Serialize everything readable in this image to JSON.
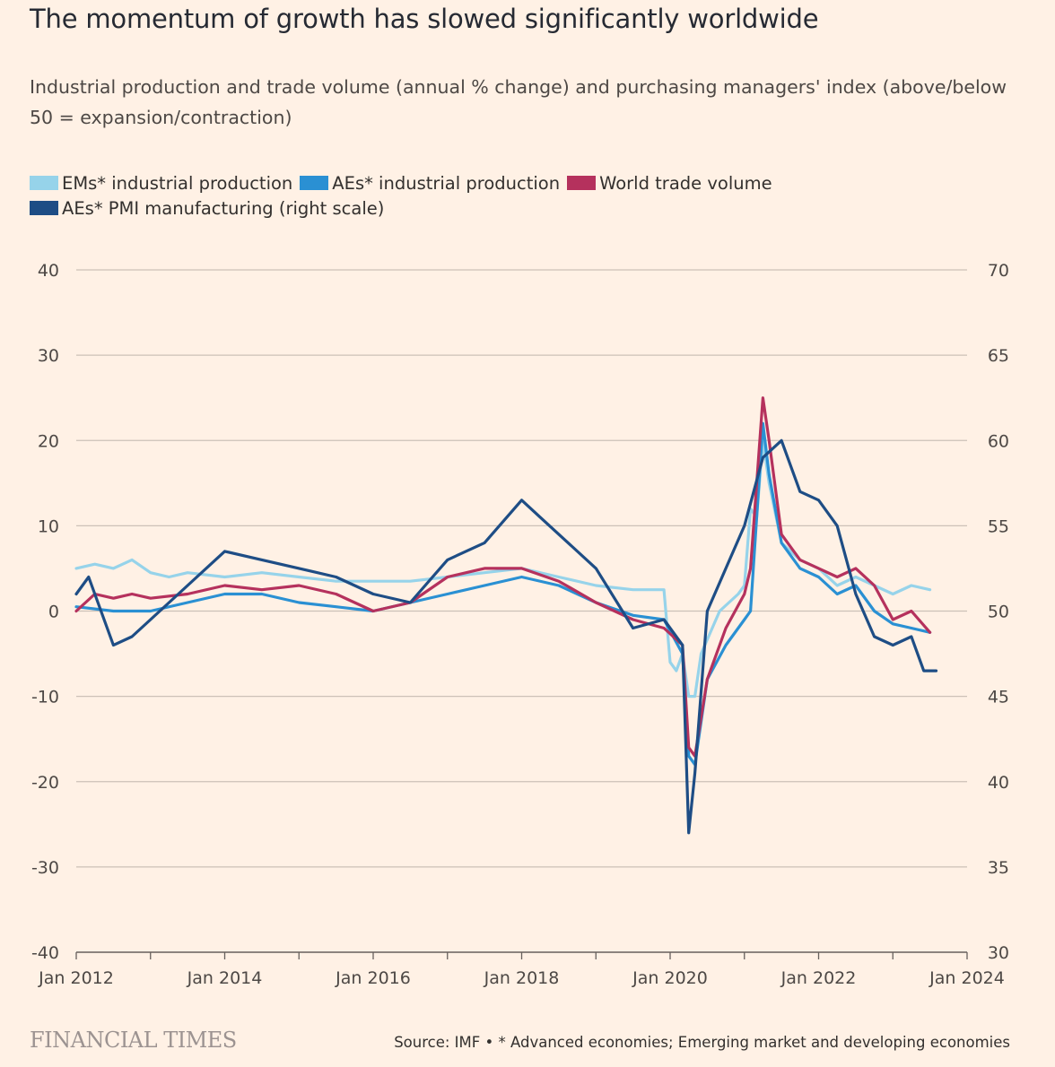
{
  "title": "The momentum of growth has slowed significantly worldwide",
  "subtitle": "Industrial production and trade volume (annual % change) and purchasing managers' index (above/below 50 = expansion/contraction)",
  "legend": [
    {
      "label": "EMs* industrial production",
      "color": "#96d3ea"
    },
    {
      "label": "AEs* industrial production",
      "color": "#2a90d3"
    },
    {
      "label": "World trade volume",
      "color": "#b5315d"
    },
    {
      "label": "AEs* PMI manufacturing (right scale)",
      "color": "#1e4d85"
    }
  ],
  "footer": {
    "logo": "FINANCIAL TIMES",
    "source": "Source: IMF • * Advanced economies; Emerging market and developing economies"
  },
  "chart_data": {
    "type": "line",
    "x_range": [
      "2012-01",
      "2024-01"
    ],
    "x_ticks": [
      "Jan 2012",
      "Jan 2014",
      "Jan 2016",
      "Jan 2018",
      "Jan 2020",
      "Jan 2022",
      "Jan 2024"
    ],
    "y_left": {
      "ylim": [
        -40,
        40
      ],
      "ticks": [
        "40",
        "30",
        "20",
        "10",
        "0",
        "-10",
        "-20",
        "-30",
        "-40"
      ]
    },
    "y_right": {
      "ylim": [
        30,
        70
      ],
      "ticks": [
        "70",
        "65",
        "60",
        "55",
        "50",
        "45",
        "40",
        "35",
        "30"
      ]
    },
    "grid": true,
    "legend_position": "top-left",
    "series": [
      {
        "name": "EMs* industrial production",
        "color": "#96d3ea",
        "axis": "left",
        "points": [
          [
            "2012-01",
            5
          ],
          [
            "2012-04",
            5.5
          ],
          [
            "2012-07",
            5
          ],
          [
            "2012-10",
            6
          ],
          [
            "2013-01",
            4.5
          ],
          [
            "2013-04",
            4
          ],
          [
            "2013-07",
            4.5
          ],
          [
            "2014-01",
            4
          ],
          [
            "2014-07",
            4.5
          ],
          [
            "2015-01",
            4
          ],
          [
            "2015-07",
            3.5
          ],
          [
            "2016-01",
            3.5
          ],
          [
            "2016-07",
            3.5
          ],
          [
            "2017-01",
            4
          ],
          [
            "2017-07",
            4.5
          ],
          [
            "2018-01",
            5
          ],
          [
            "2018-07",
            4
          ],
          [
            "2019-01",
            3
          ],
          [
            "2019-07",
            2.5
          ],
          [
            "2019-12",
            2.5
          ],
          [
            "2020-01",
            -6
          ],
          [
            "2020-02",
            -7
          ],
          [
            "2020-03",
            -5
          ],
          [
            "2020-04",
            -10
          ],
          [
            "2020-05",
            -10
          ],
          [
            "2020-06",
            -5
          ],
          [
            "2020-09",
            0
          ],
          [
            "2020-12",
            2
          ],
          [
            "2021-01",
            3
          ],
          [
            "2021-02",
            12
          ],
          [
            "2021-03",
            11
          ],
          [
            "2021-04",
            20
          ],
          [
            "2021-05",
            15
          ],
          [
            "2021-07",
            8
          ],
          [
            "2021-10",
            6
          ],
          [
            "2022-01",
            5
          ],
          [
            "2022-04",
            3
          ],
          [
            "2022-07",
            4
          ],
          [
            "2022-10",
            3
          ],
          [
            "2023-01",
            2
          ],
          [
            "2023-04",
            3
          ],
          [
            "2023-07",
            2.5
          ]
        ]
      },
      {
        "name": "AEs* industrial production",
        "color": "#2a90d3",
        "axis": "left",
        "points": [
          [
            "2012-01",
            0.5
          ],
          [
            "2012-07",
            0
          ],
          [
            "2013-01",
            0
          ],
          [
            "2013-07",
            1
          ],
          [
            "2014-01",
            2
          ],
          [
            "2014-07",
            2
          ],
          [
            "2015-01",
            1
          ],
          [
            "2015-07",
            0.5
          ],
          [
            "2016-01",
            0
          ],
          [
            "2016-07",
            1
          ],
          [
            "2017-01",
            2
          ],
          [
            "2017-07",
            3
          ],
          [
            "2018-01",
            4
          ],
          [
            "2018-07",
            3
          ],
          [
            "2019-01",
            1
          ],
          [
            "2019-07",
            -0.5
          ],
          [
            "2019-12",
            -1
          ],
          [
            "2020-03",
            -5
          ],
          [
            "2020-04",
            -17
          ],
          [
            "2020-05",
            -18
          ],
          [
            "2020-07",
            -8
          ],
          [
            "2020-10",
            -4
          ],
          [
            "2021-01",
            -1
          ],
          [
            "2021-02",
            0
          ],
          [
            "2021-04",
            22
          ],
          [
            "2021-05",
            16
          ],
          [
            "2021-07",
            8
          ],
          [
            "2021-10",
            5
          ],
          [
            "2022-01",
            4
          ],
          [
            "2022-04",
            2
          ],
          [
            "2022-07",
            3
          ],
          [
            "2022-10",
            0
          ],
          [
            "2023-01",
            -1.5
          ],
          [
            "2023-04",
            -2
          ],
          [
            "2023-07",
            -2.5
          ]
        ]
      },
      {
        "name": "World trade volume",
        "color": "#b5315d",
        "axis": "left",
        "points": [
          [
            "2012-01",
            0
          ],
          [
            "2012-04",
            2
          ],
          [
            "2012-07",
            1.5
          ],
          [
            "2012-10",
            2
          ],
          [
            "2013-01",
            1.5
          ],
          [
            "2013-07",
            2
          ],
          [
            "2014-01",
            3
          ],
          [
            "2014-07",
            2.5
          ],
          [
            "2015-01",
            3
          ],
          [
            "2015-07",
            2
          ],
          [
            "2016-01",
            0
          ],
          [
            "2016-07",
            1
          ],
          [
            "2017-01",
            4
          ],
          [
            "2017-07",
            5
          ],
          [
            "2018-01",
            5
          ],
          [
            "2018-07",
            3.5
          ],
          [
            "2019-01",
            1
          ],
          [
            "2019-07",
            -1
          ],
          [
            "2019-12",
            -2
          ],
          [
            "2020-03",
            -4
          ],
          [
            "2020-04",
            -16
          ],
          [
            "2020-05",
            -17
          ],
          [
            "2020-07",
            -8
          ],
          [
            "2020-10",
            -2
          ],
          [
            "2021-01",
            2
          ],
          [
            "2021-02",
            5
          ],
          [
            "2021-04",
            25
          ],
          [
            "2021-05",
            20
          ],
          [
            "2021-07",
            9
          ],
          [
            "2021-10",
            6
          ],
          [
            "2022-01",
            5
          ],
          [
            "2022-04",
            4
          ],
          [
            "2022-07",
            5
          ],
          [
            "2022-10",
            3
          ],
          [
            "2023-01",
            -1
          ],
          [
            "2023-04",
            0
          ],
          [
            "2023-07",
            -2.5
          ]
        ]
      },
      {
        "name": "AEs* PMI manufacturing (right scale)",
        "color": "#1e4d85",
        "axis": "right",
        "points": [
          [
            "2012-01",
            51
          ],
          [
            "2012-03",
            52
          ],
          [
            "2012-07",
            48
          ],
          [
            "2012-10",
            48.5
          ],
          [
            "2013-01",
            49.5
          ],
          [
            "2013-07",
            51.5
          ],
          [
            "2014-01",
            53.5
          ],
          [
            "2014-07",
            53
          ],
          [
            "2015-01",
            52.5
          ],
          [
            "2015-07",
            52
          ],
          [
            "2016-01",
            51
          ],
          [
            "2016-07",
            50.5
          ],
          [
            "2017-01",
            53
          ],
          [
            "2017-07",
            54
          ],
          [
            "2018-01",
            56.5
          ],
          [
            "2018-04",
            55.5
          ],
          [
            "2018-07",
            54.5
          ],
          [
            "2019-01",
            52.5
          ],
          [
            "2019-07",
            49
          ],
          [
            "2019-12",
            49.5
          ],
          [
            "2020-03",
            48
          ],
          [
            "2020-04",
            37
          ],
          [
            "2020-05",
            40.5
          ],
          [
            "2020-07",
            50
          ],
          [
            "2020-10",
            52.5
          ],
          [
            "2021-01",
            55
          ],
          [
            "2021-04",
            59
          ],
          [
            "2021-07",
            60
          ],
          [
            "2021-10",
            57
          ],
          [
            "2022-01",
            56.5
          ],
          [
            "2022-04",
            55
          ],
          [
            "2022-07",
            51
          ],
          [
            "2022-10",
            48.5
          ],
          [
            "2023-01",
            48
          ],
          [
            "2023-04",
            48.5
          ],
          [
            "2023-06",
            46.5
          ],
          [
            "2023-08",
            46.5
          ]
        ]
      }
    ]
  }
}
